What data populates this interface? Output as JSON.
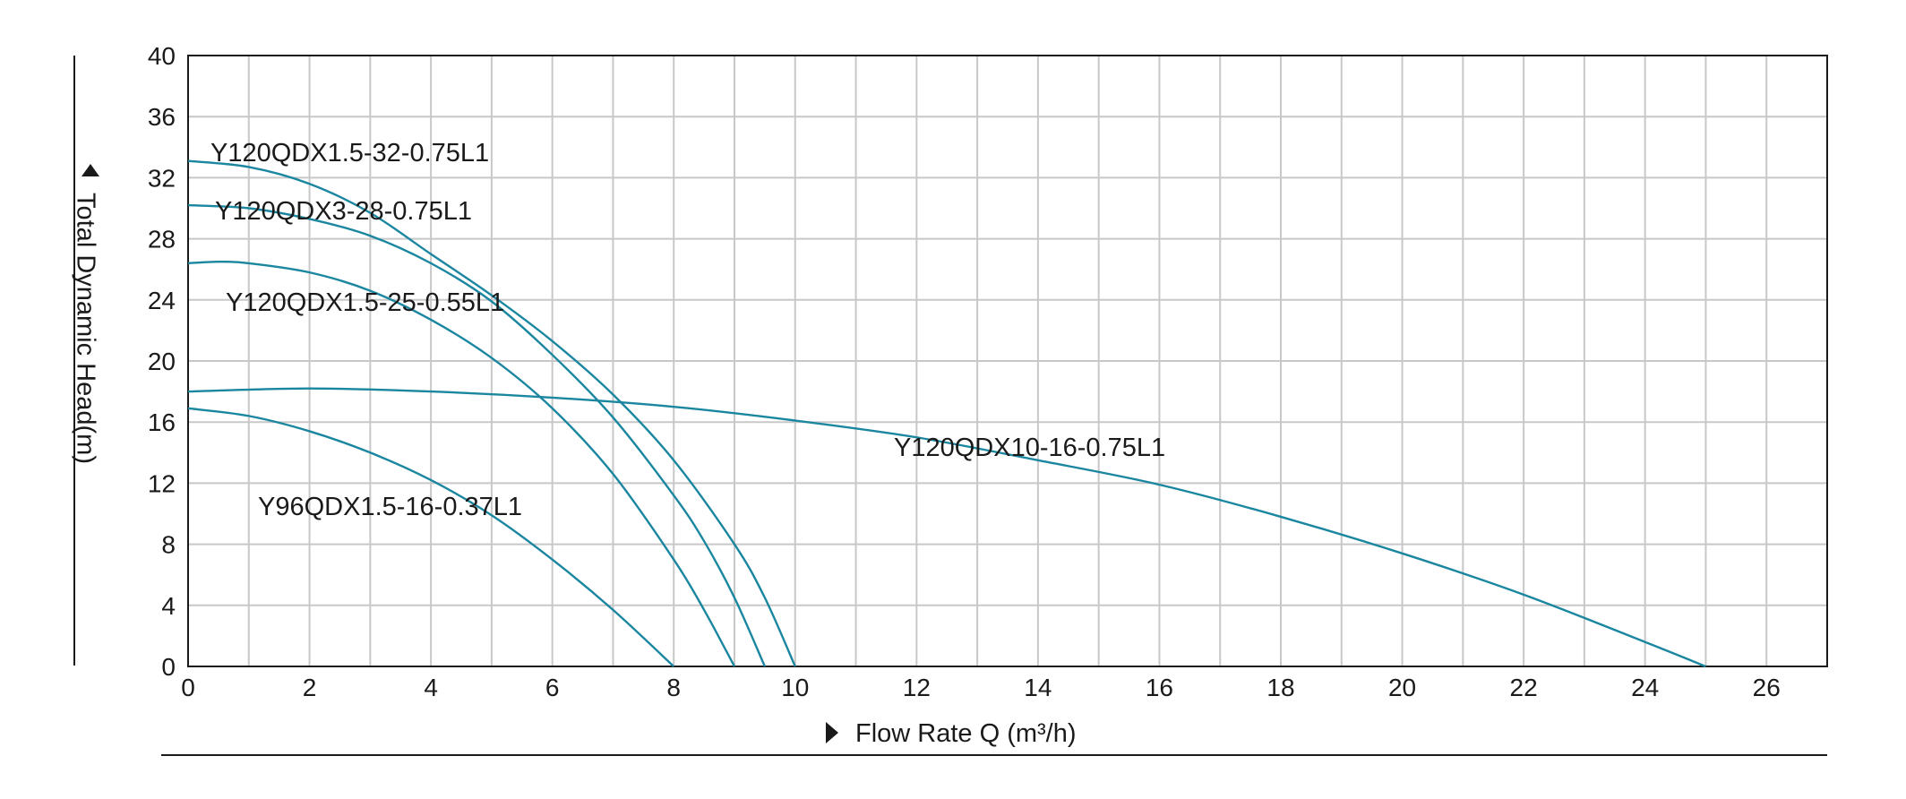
{
  "chart_data": {
    "type": "line",
    "xlabel": "Flow Rate Q (m³/h)",
    "ylabel": "Total Dynamic Head(m)",
    "xlim": [
      0,
      27
    ],
    "ylim": [
      0,
      40
    ],
    "x_ticks": [
      "0",
      "2",
      "4",
      "6",
      "8",
      "10",
      "12",
      "14",
      "16",
      "18",
      "20",
      "22",
      "24",
      "26"
    ],
    "y_ticks": [
      "0",
      "4",
      "8",
      "12",
      "16",
      "20",
      "24",
      "28",
      "32",
      "36",
      "40"
    ],
    "grid": true,
    "line_color": "#1a86a0",
    "series": [
      {
        "name": "Y120QDX1.5-32-0.75L1",
        "x": [
          0,
          1,
          2,
          3,
          4,
          5,
          6,
          7,
          8,
          9,
          9.5,
          10
        ],
        "y": [
          33.1,
          32.7,
          31.6,
          29.7,
          27.0,
          24.3,
          21.3,
          17.8,
          13.5,
          8.0,
          4.5,
          0
        ]
      },
      {
        "name": "Y120QDX3-28-0.75L1",
        "x": [
          0,
          1,
          2,
          3,
          4,
          5,
          6,
          7,
          8,
          8.5,
          9,
          9.5
        ],
        "y": [
          30.2,
          30.0,
          29.3,
          28.2,
          26.4,
          23.9,
          20.4,
          16.3,
          11.2,
          8.2,
          4.5,
          0
        ]
      },
      {
        "name": "Y120QDX1.5-25-0.55L1",
        "x": [
          0,
          0.5,
          1,
          2,
          3,
          4,
          5,
          6,
          7,
          8,
          8.5,
          9
        ],
        "y": [
          26.4,
          26.5,
          26.4,
          25.8,
          24.6,
          22.7,
          20.2,
          16.9,
          12.6,
          7.0,
          3.7,
          0
        ]
      },
      {
        "name": "Y120QDX10-16-0.75L1",
        "x": [
          0,
          2,
          4,
          6,
          8,
          10,
          12,
          14,
          16,
          18,
          20,
          22,
          24,
          25
        ],
        "y": [
          18.0,
          18.2,
          18.0,
          17.6,
          17.0,
          16.1,
          15.0,
          13.5,
          11.9,
          9.8,
          7.4,
          4.7,
          1.6,
          0
        ]
      },
      {
        "name": "Y96QDX1.5-16-0.37L1",
        "x": [
          0,
          1,
          2,
          3,
          4,
          5,
          6,
          7,
          8
        ],
        "y": [
          16.9,
          16.4,
          15.4,
          14.0,
          12.2,
          9.9,
          7.0,
          3.7,
          0
        ]
      }
    ]
  }
}
